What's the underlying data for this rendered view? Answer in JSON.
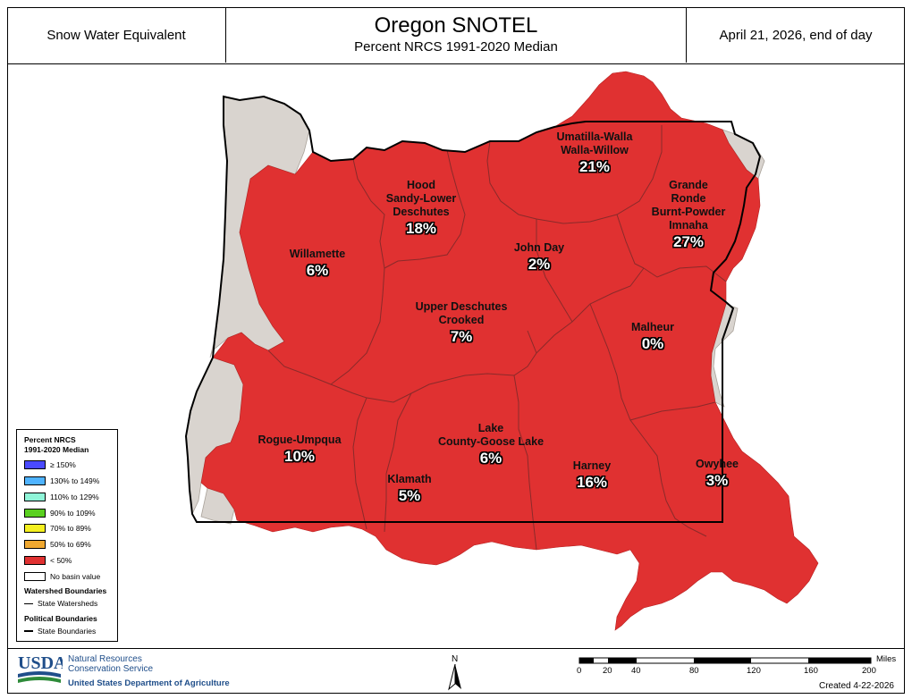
{
  "header": {
    "left": "Snow Water Equivalent",
    "title": "Oregon SNOTEL",
    "subtitle": "Percent NRCS 1991-2020 Median",
    "right": "April 21, 2026, end of day"
  },
  "colors": {
    "basin_fill": "#e03131",
    "no_data": "#d9d4cf",
    "watershed_line": "#8a2a2a",
    "state_line": "#000000"
  },
  "basins": [
    {
      "lines": [
        "Umatilla-Walla",
        "Walla-Willow"
      ],
      "pct": "21%"
    },
    {
      "lines": [
        "Hood",
        "Sandy-Lower",
        "Deschutes"
      ],
      "pct": "18%"
    },
    {
      "lines": [
        "Grande",
        "Ronde",
        "Burnt-Powder",
        "Imnaha"
      ],
      "pct": "27%"
    },
    {
      "lines": [
        "Willamette"
      ],
      "pct": "6%"
    },
    {
      "lines": [
        "John Day"
      ],
      "pct": "2%"
    },
    {
      "lines": [
        "Upper Deschutes",
        "Crooked"
      ],
      "pct": "7%"
    },
    {
      "lines": [
        "Malheur"
      ],
      "pct": "0%"
    },
    {
      "lines": [
        "Rogue-Umpqua"
      ],
      "pct": "10%"
    },
    {
      "lines": [
        "Lake",
        "County-Goose Lake"
      ],
      "pct": "6%"
    },
    {
      "lines": [
        "Klamath"
      ],
      "pct": "5%"
    },
    {
      "lines": [
        "Harney"
      ],
      "pct": "16%"
    },
    {
      "lines": [
        "Owyhee"
      ],
      "pct": "3%"
    }
  ],
  "legend": {
    "title_line1": "Percent NRCS",
    "title_line2": "1991-2020 Median",
    "items": [
      {
        "label": "≥ 150%",
        "color": "#4a4aff"
      },
      {
        "label": "130% to 149%",
        "color": "#4fb3ff"
      },
      {
        "label": "110% to 129%",
        "color": "#8ff5d8"
      },
      {
        "label": "90% to 109%",
        "color": "#5ad020"
      },
      {
        "label": "70% to 89%",
        "color": "#f5f020"
      },
      {
        "label": "50% to 69%",
        "color": "#f0a830"
      },
      {
        "label": "< 50%",
        "color": "#e03131"
      },
      {
        "label": "No basin value",
        "color": "#ffffff"
      }
    ],
    "watershed_title": "Watershed Boundaries",
    "watershed_item": "State Watersheds",
    "political_title": "Political Boundaries",
    "political_item": "State Boundaries"
  },
  "footer": {
    "usda_logo": "USDA",
    "agency_line1": "Natural Resources",
    "agency_line2": "Conservation Service",
    "department": "United States Department of Agriculture",
    "north": "N",
    "scale_unit": "Miles",
    "scale_ticks": [
      "0",
      "20",
      "40",
      "80",
      "120",
      "160",
      "200"
    ],
    "created": "Created 4-22-2026"
  }
}
